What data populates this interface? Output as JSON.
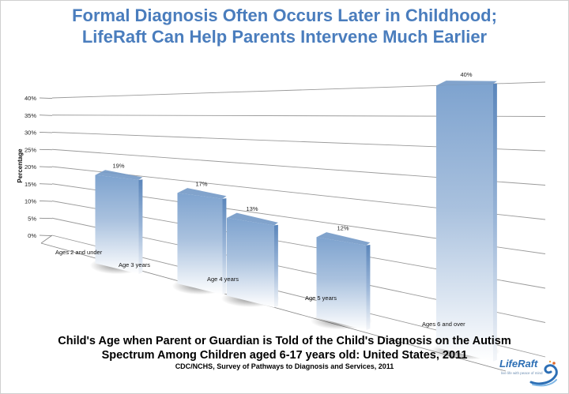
{
  "header": {
    "title_line1": "Formal Diagnosis Often Occurs Later in Childhood;",
    "title_line2": "LifeRaft Can Help Parents Intervene Much Earlier"
  },
  "caption": {
    "line1": "Child's Age when Parent or Guardian is Told of the Child's Diagnosis on the Autism",
    "line2": "Spectrum Among Children aged 6-17 years old: United States, 2011",
    "source": "CDC/NCHS, Survey of Pathways to Diagnosis and Services, 2011"
  },
  "logo": {
    "name": "LifeRaft",
    "tagline": "live life with peace of mind",
    "icon": "wave-swirl-icon"
  },
  "colors": {
    "title": "#4a7dbd",
    "bar_top": "#7399c6",
    "bar_side": "#5a84b9",
    "grid": "#9a9a9a"
  },
  "chart_data": {
    "type": "bar",
    "title": "",
    "ylabel": "Percentage",
    "xlabel": "",
    "ylim": [
      0,
      40
    ],
    "yticks": [
      "0%",
      "5%",
      "10%",
      "15%",
      "20%",
      "25%",
      "30%",
      "35%",
      "40%"
    ],
    "categories": [
      "Ages 2 and under",
      "Age 3 years",
      "Age 4 years",
      "Age 5 years",
      "Ages 6 and over"
    ],
    "values": [
      19,
      17,
      13,
      12,
      40
    ],
    "data_labels": [
      "19%",
      "17%",
      "13%",
      "12%",
      "40%"
    ],
    "grid": true,
    "legend": "none"
  }
}
